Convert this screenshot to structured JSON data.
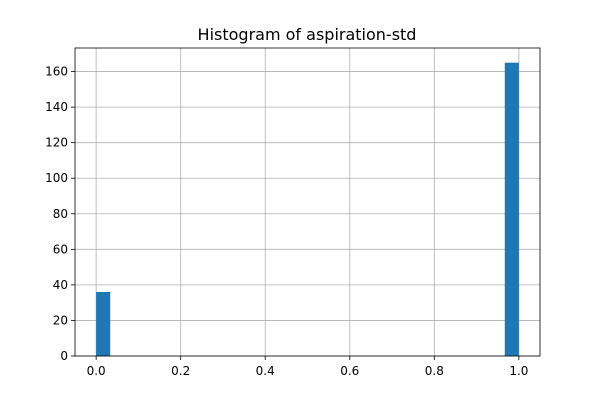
{
  "chart_data": {
    "type": "bar",
    "title": "Histogram of aspiration-std",
    "xlabel": "",
    "ylabel": "",
    "xlim": [
      -0.05,
      1.05
    ],
    "ylim": [
      0,
      173.25
    ],
    "grid": true,
    "bar_color": "#1f77b4",
    "bin_width": 0.03333,
    "bars": [
      {
        "x_start": 0.0,
        "value": 36
      },
      {
        "x_start": 0.96667,
        "value": 165
      }
    ],
    "x_ticks": [
      0.0,
      0.2,
      0.4,
      0.6,
      0.8,
      1.0
    ],
    "x_tick_labels": [
      "0.0",
      "0.2",
      "0.4",
      "0.6",
      "0.8",
      "1.0"
    ],
    "y_ticks": [
      0,
      20,
      40,
      60,
      80,
      100,
      120,
      140,
      160
    ],
    "y_tick_labels": [
      "0",
      "20",
      "40",
      "60",
      "80",
      "100",
      "120",
      "140",
      "160"
    ]
  }
}
